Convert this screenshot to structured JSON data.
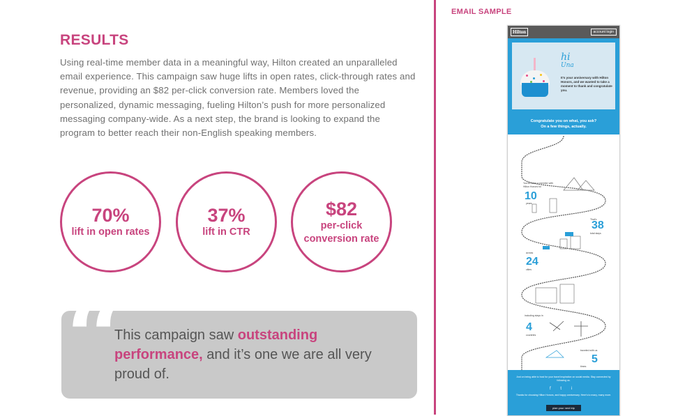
{
  "results": {
    "title": "RESULTS",
    "body": "Using real-time member data in a meaningful way, Hilton created an unparalleled email experience. This campaign saw huge lifts in open rates, click-through rates and revenue, providing an $82 per-click conversion rate. Members loved the personalized, dynamic messaging, fueling Hilton’s push for more personalized messaging company-wide. As a next step, the brand is looking to expand the program to better reach their non-English speaking members."
  },
  "stats": [
    {
      "value": "70%",
      "label": "lift in open rates"
    },
    {
      "value": "37%",
      "label": "lift in CTR"
    },
    {
      "value": "$82",
      "label_line1": "per-click",
      "label_line2": "conversion rate"
    }
  ],
  "quote": {
    "mark": "“",
    "part1": "This campaign saw ",
    "highlight": "outstanding performance,",
    "part2": " and it’s one we are all very proud of."
  },
  "email": {
    "label": "EMAIL SAMPLE",
    "logo": "Hilton",
    "account_button": "account login",
    "hi": "hi",
    "name": "Una",
    "message": "It's your anniversary with Hilton Honors, and we wanted to take a moment to thank and congratulate you.",
    "banner_line1": "Congratulate you on what, you ask?",
    "banner_line2": "On a few things, actually.",
    "milestones": [
      {
        "number": "10",
        "unit": "years",
        "text": "You've been a member with Hilton Honors for"
      },
      {
        "number": "38",
        "unit": "total stays",
        "text": "That's"
      },
      {
        "number": "24",
        "unit": "cities",
        "text": "across"
      },
      {
        "number": "4",
        "unit": "countries",
        "text": "including stays in"
      },
      {
        "number": "5",
        "unit": "times",
        "text": "traveled with us"
      }
    ],
    "footer_text": "And on being able to host for your travel inspiration on social media. Stay connected by following us.",
    "social": "f  t  i",
    "footer_text2": "Thanks for choosing Hilton Honors, and happy anniversary. Here's to many, many more.",
    "cta": "plan your next trip"
  },
  "colors": {
    "accent": "#c8447e",
    "email_blue": "#2a9fd8",
    "quote_bg": "#c9c9c9"
  }
}
